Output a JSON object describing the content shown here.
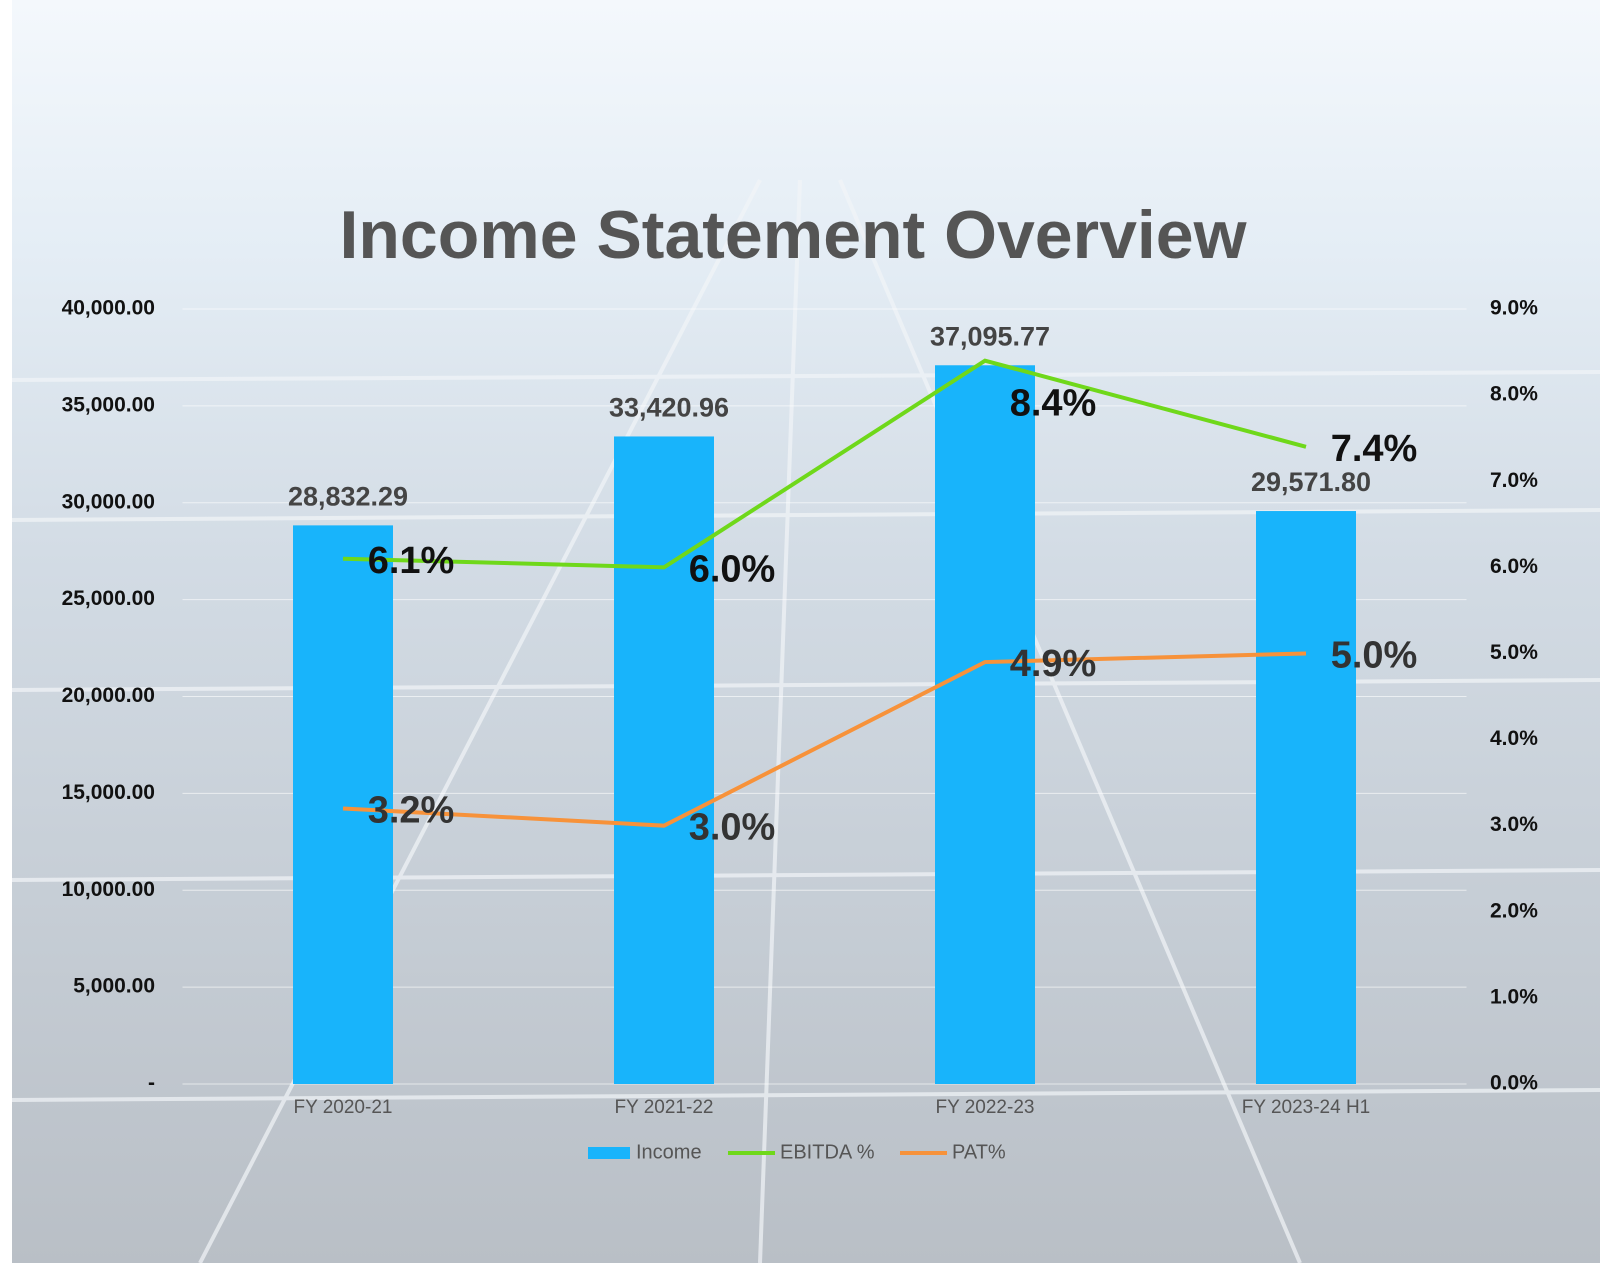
{
  "chart_data": {
    "type": "bar_line",
    "title": "Income Statement Overview",
    "categories": [
      "FY 2020-21",
      "FY 2021-22",
      "FY 2022-23",
      "FY 2023-24 H1"
    ],
    "series": [
      {
        "name": "Income",
        "type": "bar",
        "axis": "y",
        "color": "#18b4fb",
        "values": [
          28832.29,
          33420.96,
          37095.77,
          29571.8
        ],
        "value_labels": [
          "28,832.29",
          "33,420.96",
          "37,095.77",
          "29,571.80"
        ]
      },
      {
        "name": "EBITDA %",
        "type": "line",
        "axis": "y2",
        "color": "#6fd81a",
        "values": [
          6.1,
          6.0,
          8.4,
          7.4
        ],
        "value_labels": [
          "6.1%",
          "6.0%",
          "8.4%",
          "7.4%"
        ]
      },
      {
        "name": "PAT%",
        "type": "line",
        "axis": "y2",
        "color": "#f7923a",
        "values": [
          3.2,
          3.0,
          4.9,
          5.0
        ],
        "value_labels": [
          "3.2%",
          "3.0%",
          "4.9%",
          "5.0%"
        ]
      }
    ],
    "ylim": [
      0,
      40000
    ],
    "yticks": [
      {
        "value": 0,
        "label": "-"
      },
      {
        "value": 5000,
        "label": "5,000.00"
      },
      {
        "value": 10000,
        "label": "10,000.00"
      },
      {
        "value": 15000,
        "label": "15,000.00"
      },
      {
        "value": 20000,
        "label": "20,000.00"
      },
      {
        "value": 25000,
        "label": "25,000.00"
      },
      {
        "value": 30000,
        "label": "30,000.00"
      },
      {
        "value": 35000,
        "label": "35,000.00"
      },
      {
        "value": 40000,
        "label": "40,000.00"
      }
    ],
    "y2lim": [
      0,
      9
    ],
    "y2ticks": [
      {
        "value": 0,
        "label": "0.0%"
      },
      {
        "value": 1,
        "label": "1.0%"
      },
      {
        "value": 2,
        "label": "2.0%"
      },
      {
        "value": 3,
        "label": "3.0%"
      },
      {
        "value": 4,
        "label": "4.0%"
      },
      {
        "value": 5,
        "label": "5.0%"
      },
      {
        "value": 6,
        "label": "6.0%"
      },
      {
        "value": 7,
        "label": "7.0%"
      },
      {
        "value": 8,
        "label": "8.0%"
      },
      {
        "value": 9,
        "label": "9.0%"
      }
    ],
    "grid": true,
    "legend": "bottom"
  }
}
